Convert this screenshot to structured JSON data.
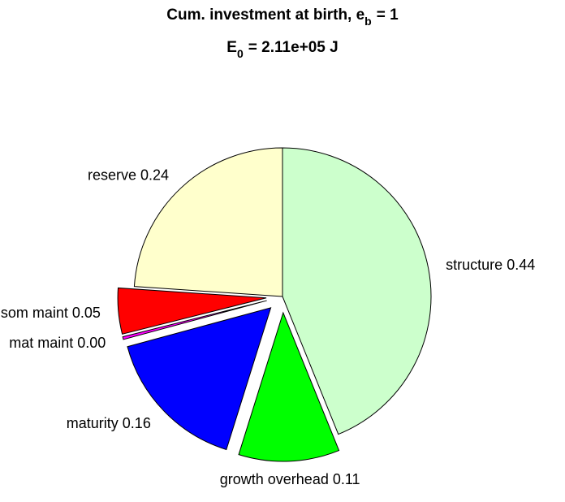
{
  "chart_data": {
    "type": "pie",
    "title": {
      "text": "Cum. investment at birth, e",
      "subscript": "b",
      "suffix": "= 1"
    },
    "subtitle": {
      "text": "E",
      "subscript": "0",
      "suffix": "= 2.11e+05 J"
    },
    "categories": [
      "structure",
      "growth overhead",
      "maturity",
      "mat maint",
      "som maint",
      "reserve"
    ],
    "values": [
      0.44,
      0.11,
      0.16,
      0.003,
      0.05,
      0.24
    ],
    "value_labels": [
      "0.44",
      "0.11",
      "0.16",
      "0.00",
      "0.05",
      "0.24"
    ],
    "colors": [
      "#ccffcc",
      "#00ff00",
      "#0000ff",
      "#ff00ff",
      "#ff0000",
      "#ffffcc"
    ],
    "explode": [
      0,
      1,
      1,
      1,
      1,
      0
    ]
  }
}
